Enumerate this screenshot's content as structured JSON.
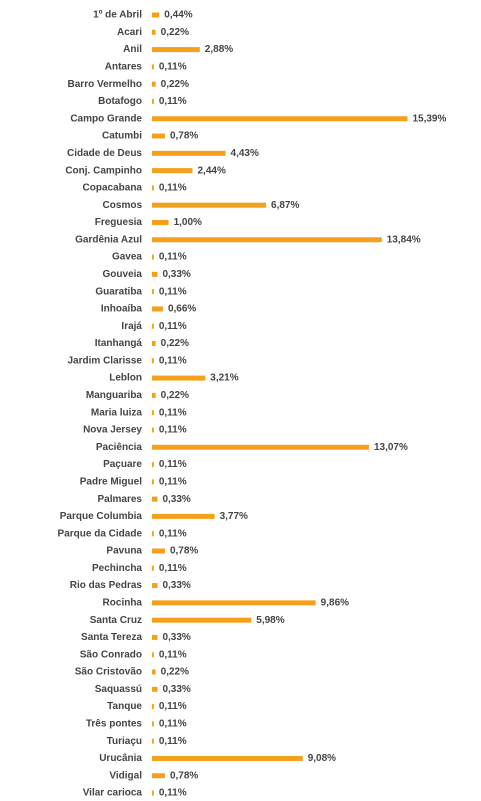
{
  "chart_data": {
    "type": "hbar",
    "color": "#f5a01a",
    "categories": [
      "1º de Abril",
      "Acari",
      "Anil",
      "Antares",
      "Barro Vermelho",
      "Botafogo",
      "Campo Grande",
      "Catumbi",
      "Cidade de Deus",
      "Conj. Campinho",
      "Copacabana",
      "Cosmos",
      "Freguesia",
      "Gardênia Azul",
      "Gavea",
      "Gouveia",
      "Guaratiba",
      "Inhoaíba",
      "Irajá",
      "Itanhangá",
      "Jardim Clarisse",
      "Leblon",
      "Manguariba",
      "Maria luiza",
      "Nova Jersey",
      "Paciência",
      "Paçuare",
      "Padre Miguel",
      "Palmares",
      "Parque Columbia",
      "Parque da Cidade",
      "Pavuna",
      "Pechincha",
      "Rio das Pedras",
      "Rocinha",
      "Santa Cruz",
      "Santa Tereza",
      "São Conrado",
      "São Cristovão",
      "Saquassú",
      "Tanque",
      "Três pontes",
      "Turiaçu",
      "Urucânia",
      "Vidigal",
      "Vilar carioca"
    ],
    "values": [
      0.44,
      0.22,
      2.88,
      0.11,
      0.22,
      0.11,
      15.39,
      0.78,
      4.43,
      2.44,
      0.11,
      6.87,
      1.0,
      13.84,
      0.11,
      0.33,
      0.11,
      0.66,
      0.11,
      0.22,
      0.11,
      3.21,
      0.22,
      0.11,
      0.11,
      13.07,
      0.11,
      0.11,
      0.33,
      3.77,
      0.11,
      0.78,
      0.11,
      0.33,
      9.86,
      5.98,
      0.33,
      0.11,
      0.22,
      0.33,
      0.11,
      0.11,
      0.11,
      9.08,
      0.78,
      0.11
    ],
    "value_labels": [
      "0,44%",
      "0,22%",
      "2,88%",
      "0,11%",
      "0,22%",
      "0,11%",
      "15,39%",
      "0,78%",
      "4,43%",
      "2,44%",
      "0,11%",
      "6,87%",
      "1,00%",
      "13,84%",
      "0,11%",
      "0,33%",
      "0,11%",
      "0,66%",
      "0,11%",
      "0,22%",
      "0,11%",
      "3,21%",
      "0,22%",
      "0,11%",
      "0,11%",
      "13,07%",
      "0,11%",
      "0,11%",
      "0,33%",
      "3,77%",
      "0,11%",
      "0,78%",
      "0,11%",
      "0,33%",
      "9,86%",
      "5,98%",
      "0,33%",
      "0,11%",
      "0,22%",
      "0,33%",
      "0,11%",
      "0,11%",
      "0,11%",
      "9,08%",
      "0,78%",
      "0,11%"
    ]
  }
}
